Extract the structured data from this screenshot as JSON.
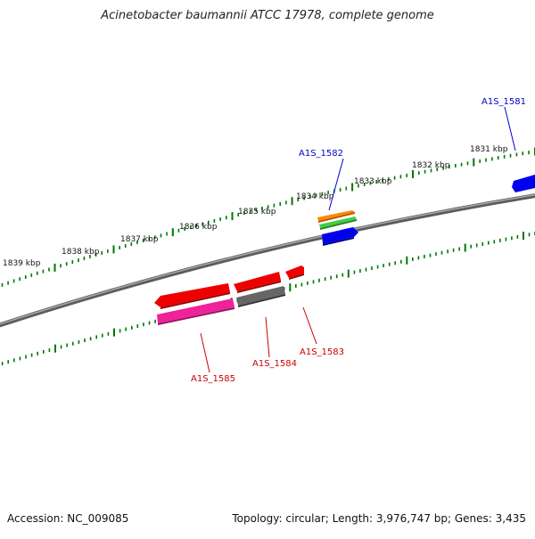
{
  "title": "Acinetobacter baumannii ATCC 17978, complete genome",
  "footer": {
    "accession": "Accession: NC_009085",
    "summary": "Topology: circular; Length: 3,976,747 bp; Genes: 3,435"
  },
  "colors": {
    "backbone": "#808080",
    "tick": "#007700",
    "label_blue": "#0000cc",
    "label_red": "#cc0000"
  },
  "scale_labels": [
    "1831 kbp",
    "1832 kbp",
    "1833 kbp",
    "1834 kbp",
    "1835 kbp",
    "1836 kbp",
    "1837 kbp",
    "1838 kbp",
    "1839 kbp"
  ],
  "gene_labels": [
    {
      "text": "A1S_1581",
      "color": "#0000cc"
    },
    {
      "text": "A1S_1582",
      "color": "#0000cc"
    },
    {
      "text": "A1S_1583",
      "color": "#cc0000"
    },
    {
      "text": "A1S_1584",
      "color": "#cc0000"
    },
    {
      "text": "A1S_1585",
      "color": "#cc0000"
    }
  ],
  "features": [
    {
      "name": "A1S_1581",
      "color": "#0000ee",
      "strand": "forward"
    },
    {
      "name": "A1S_1582-a",
      "color": "#ff8800",
      "strand": "forward"
    },
    {
      "name": "A1S_1582-b",
      "color": "#33bb33",
      "strand": "forward"
    },
    {
      "name": "A1S_1582-c",
      "color": "#0000ee",
      "strand": "forward"
    },
    {
      "name": "A1S_1583",
      "color": "#ee0000",
      "strand": "reverse"
    },
    {
      "name": "A1S_1584",
      "color": "#ee0000",
      "strand": "reverse"
    },
    {
      "name": "A1S_1584-b",
      "color": "#666666",
      "strand": "reverse"
    },
    {
      "name": "A1S_1585",
      "color": "#ee0000",
      "strand": "reverse"
    },
    {
      "name": "A1S_1585-b",
      "color": "#ee2299",
      "strand": "reverse"
    }
  ]
}
